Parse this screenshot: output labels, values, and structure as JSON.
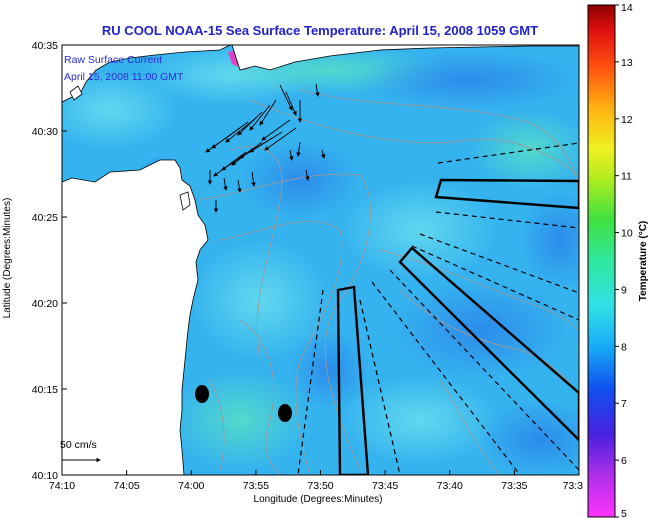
{
  "chart_data": {
    "type": "heatmap",
    "title": "RU COOL  NOAA-15  Sea Surface Temperature:  April 15, 2008 1059 GMT",
    "xlabel": "Longitude (Degrees:Minutes)",
    "ylabel": "Latitude (Degrees:Minutes)",
    "colorbar_label": "Temperature (°C)",
    "x_ticks": [
      "74:10",
      "74:05",
      "74:00",
      "73:55",
      "73:50",
      "73:45",
      "73:40",
      "73:35",
      "73:3"
    ],
    "y_ticks": [
      "40:35",
      "40:30",
      "40:25",
      "40:20",
      "40:15",
      "40:10"
    ],
    "xlim": [
      -74.1667,
      -73.5
    ],
    "ylim": [
      40.1667,
      40.5833
    ],
    "colorbar_ticks": [
      "14",
      "13",
      "12",
      "11",
      "10",
      "9",
      "8",
      "7",
      "6",
      "5"
    ],
    "colorbar_range": [
      5,
      14
    ],
    "legend": {
      "line1": "Raw Surface Current",
      "line2": "April 15, 2008 11:00 GMT"
    },
    "scale_label": "50 cm/s",
    "dominant_temperature_range": [
      6.5,
      8.5
    ],
    "land_color": "#ffffff",
    "colors": {
      "title": "#2222cc",
      "ocean_base": "#33b6f0",
      "ocean_light": "#62d8ee",
      "ocean_dark": "#1f7fe6",
      "contour": "#9a9a9a",
      "warm_patch": "#e040c8"
    }
  }
}
